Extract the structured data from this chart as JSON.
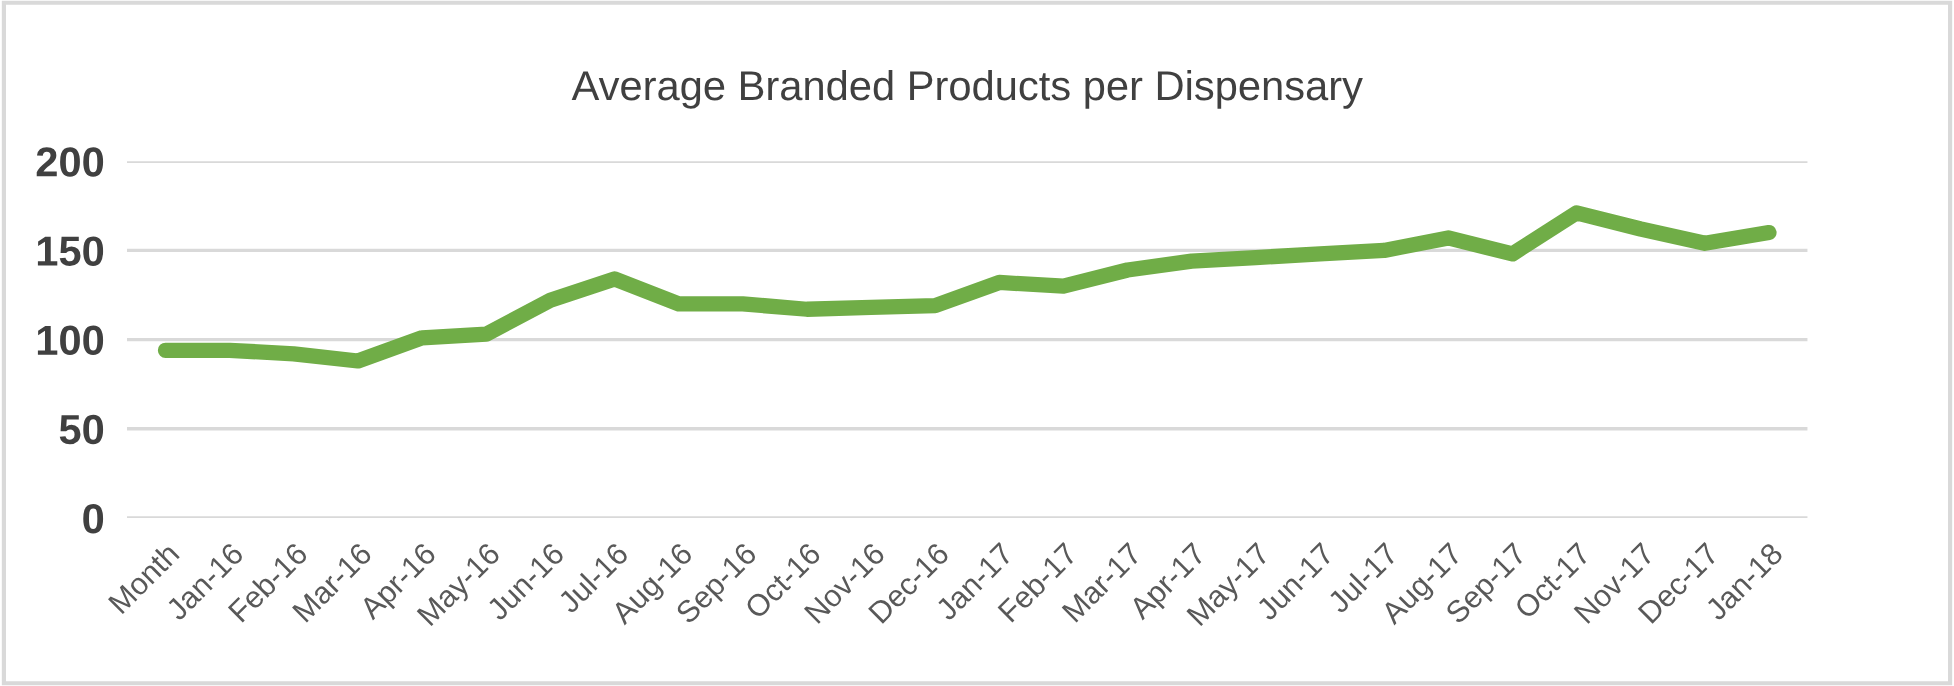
{
  "chart_data": {
    "type": "line",
    "title": "Average Branded Products per Dispensary",
    "categories": [
      "Month",
      "Jan-16",
      "Feb-16",
      "Mar-16",
      "Apr-16",
      "May-16",
      "Jun-16",
      "Jul-16",
      "Aug-16",
      "Sep-16",
      "Oct-16",
      "Nov-16",
      "Dec-16",
      "Jan-17",
      "Feb-17",
      "Mar-17",
      "Apr-17",
      "May-17",
      "Jun-17",
      "Jul-17",
      "Aug-17",
      "Sep-17",
      "Oct-17",
      "Nov-17",
      "Dec-17",
      "Jan-18"
    ],
    "series": [
      {
        "color": "#70ad47",
        "values": [
          94,
          94,
          92,
          88,
          101,
          103,
          122,
          134,
          120,
          120,
          117,
          118,
          119,
          132,
          130,
          139,
          144,
          146,
          148,
          150,
          157,
          148,
          171,
          162,
          154,
          160
        ]
      }
    ],
    "ylim": [
      0,
      200
    ],
    "yticks": [
      0,
      50,
      100,
      150,
      200
    ],
    "grid": "y",
    "legend": false,
    "marker": "none",
    "line_style": "solid"
  }
}
